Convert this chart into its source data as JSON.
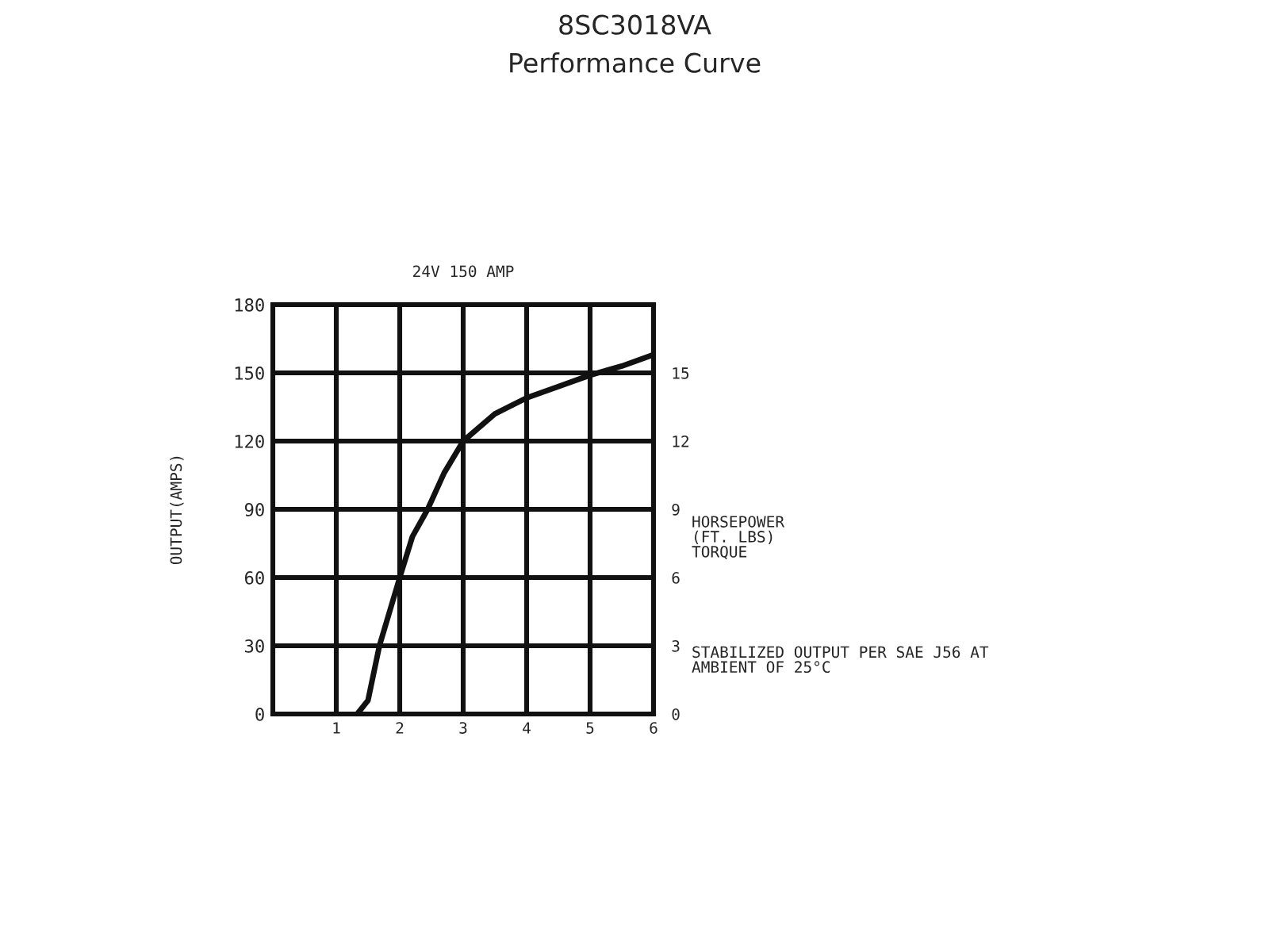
{
  "chart_data": {
    "type": "line",
    "title": "8SC3018VA",
    "subtitle": "Performance Curve",
    "ylabel": "OUTPUT(AMPS)",
    "y2label": "HORSEPOWER\n(FT. LBS)\nTORQUE",
    "annotations": [
      "24V 150 AMP",
      "STABILIZED OUTPUT PER SAE J56 AT\nAMBIENT OF 25°C"
    ],
    "series": [
      {
        "color": "#111111",
        "x": [
          1.33,
          1.5,
          1.68,
          2.0,
          2.2,
          2.44,
          2.7,
          3.0,
          3.5,
          4.0,
          4.5,
          5.0,
          5.5,
          6.0
        ],
        "values": [
          0,
          6,
          30,
          60,
          78,
          90,
          106,
          120,
          132,
          139,
          144,
          149,
          153,
          158
        ]
      }
    ],
    "xlim": [
      0,
      6
    ],
    "xticks": [
      1,
      2,
      3,
      4,
      5,
      6
    ],
    "ylim": [
      0,
      180
    ],
    "yticks": [
      0,
      30,
      60,
      90,
      120,
      150,
      180
    ],
    "y2lim": [
      0,
      18
    ],
    "y2ticks": [
      0,
      3,
      6,
      9,
      12,
      15
    ],
    "grid": true,
    "line_style": "solid",
    "marker": "none"
  }
}
